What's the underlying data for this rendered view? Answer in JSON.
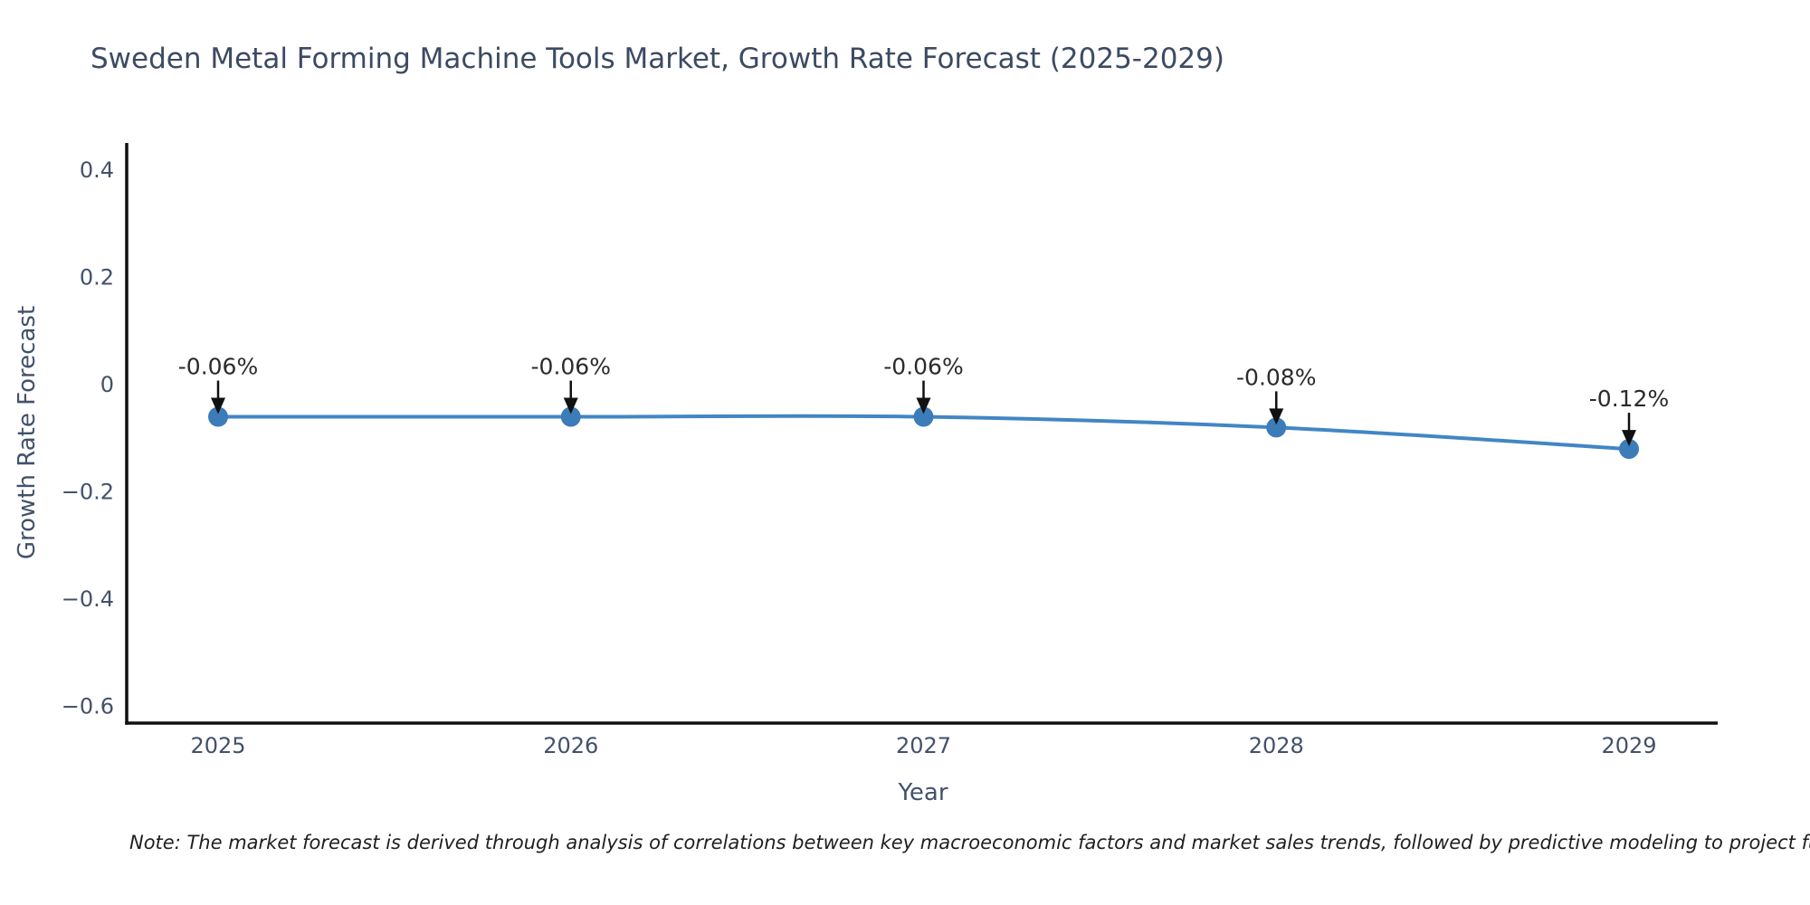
{
  "page": {
    "note": "Note: The market forecast is derived through analysis of correlations between key macroeconomic factors and market sales trends, followed by predictive modeling to project future sales."
  },
  "chart_data": {
    "type": "line",
    "title": "Sweden Metal Forming Machine Tools Market, Growth Rate Forecast (2025-2029)",
    "xlabel": "Year",
    "ylabel": "Growth Rate Forecast",
    "categories": [
      "2025",
      "2026",
      "2027",
      "2028",
      "2029"
    ],
    "series": [
      {
        "name": "Growth Rate Forecast",
        "values": [
          -0.06,
          -0.06,
          -0.06,
          -0.08,
          -0.12
        ],
        "point_labels": [
          "-0.06%",
          "-0.06%",
          "-0.06%",
          "-0.08%",
          "-0.12%"
        ]
      }
    ],
    "yticks": {
      "labels": [
        "0.4",
        "0.2",
        "0",
        "−0.2",
        "−0.4",
        "−0.6"
      ],
      "values": [
        0.4,
        0.2,
        0,
        -0.2,
        -0.4,
        -0.6
      ]
    },
    "ylim": [
      -0.633,
      0.447
    ],
    "xlim_years": [
      2024.74,
      2029.26
    ],
    "grid": false,
    "legend_position": "none",
    "annotation_style": "text-above-with-down-arrow",
    "colors": {
      "line": "#4286c4",
      "marker": "#3c7cb8",
      "axis": "#111111",
      "tick_label": "#42516b",
      "axis_title": "#42516b",
      "chart_title": "#3c4a63",
      "annotation_text": "#2b2b2b",
      "annotation_arrow": "#111111",
      "background": "#ffffff",
      "note_text": "#1f1f1f"
    }
  }
}
